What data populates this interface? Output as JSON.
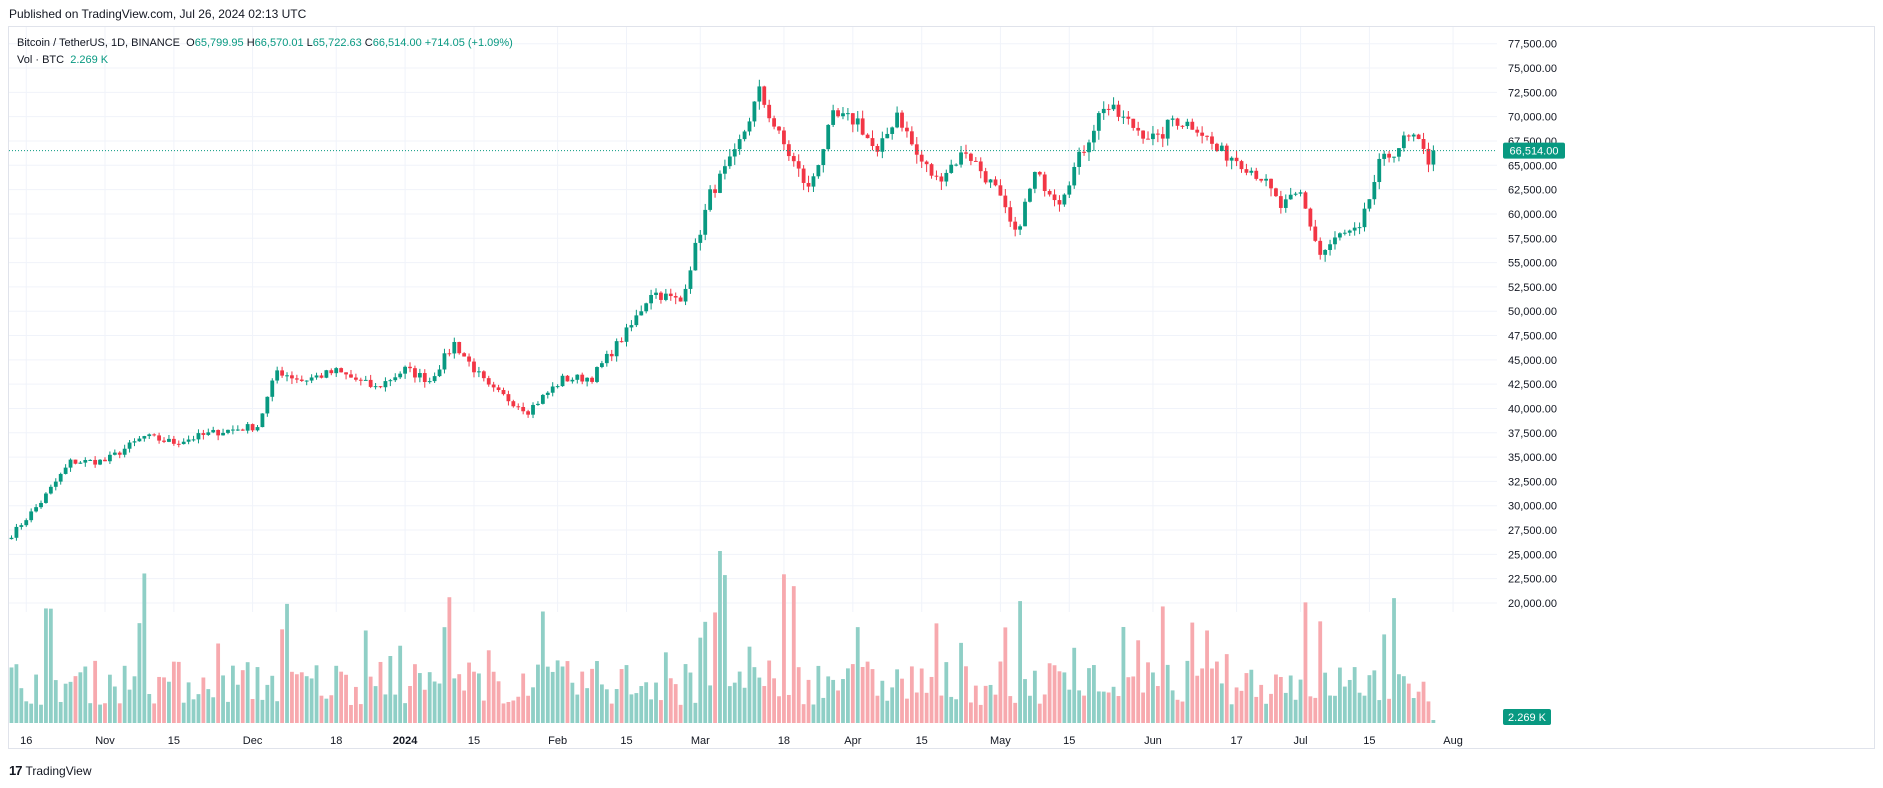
{
  "header": {
    "published": "Published on TradingView.com, Jul 26, 2024 02:13 UTC"
  },
  "legend": {
    "symbol": "Bitcoin / TetherUS, 1D, BINANCE",
    "o_label": "O",
    "o_value": "65,799.95",
    "h_label": "H",
    "h_value": "66,570.01",
    "l_label": "L",
    "l_value": "65,722.63",
    "c_label": "C",
    "c_value": "66,514.00",
    "change": "+714.05 (+1.09%)",
    "vol_label": "Vol · BTC",
    "vol_value": "2.269 K"
  },
  "footer": {
    "brand": "TradingView",
    "logo": "17"
  },
  "colors": {
    "up": "#089981",
    "down": "#f23645",
    "vol_up": "#8fcfc6",
    "vol_down": "#f7a9ae",
    "grid": "#f0f3fa",
    "axis_text": "#131722"
  },
  "chart_data": {
    "type": "candlestick",
    "title": "Bitcoin / TetherUS, 1D, BINANCE",
    "last_price": 66514.0,
    "last_price_label": "66,514.00",
    "last_volume_label": "2.269 K",
    "ylim": [
      20000,
      78500
    ],
    "y_ticks": [
      20000,
      22500,
      25000,
      27500,
      30000,
      32500,
      35000,
      37500,
      40000,
      42500,
      45000,
      47500,
      50000,
      52500,
      55000,
      57500,
      60000,
      62500,
      65000,
      67500,
      70000,
      72500,
      75000,
      77500
    ],
    "y_tick_labels": [
      "20,000.00",
      "22,500.00",
      "25,000.00",
      "27,500.00",
      "30,000.00",
      "32,500.00",
      "35,000.00",
      "37,500.00",
      "40,000.00",
      "42,500.00",
      "45,000.00",
      "47,500.00",
      "50,000.00",
      "52,500.00",
      "55,000.00",
      "57,500.00",
      "60,000.00",
      "62,500.00",
      "65,000.00",
      "67,500.00",
      "70,000.00",
      "72,500.00",
      "75,000.00",
      "77,500.00"
    ],
    "x_tick_labels": [
      {
        "label": "16",
        "index": 3
      },
      {
        "label": "Nov",
        "index": 19
      },
      {
        "label": "15",
        "index": 33
      },
      {
        "label": "Dec",
        "index": 49
      },
      {
        "label": "18",
        "index": 66
      },
      {
        "label": "2024",
        "index": 80,
        "bold": true
      },
      {
        "label": "15",
        "index": 94
      },
      {
        "label": "Feb",
        "index": 111
      },
      {
        "label": "15",
        "index": 125
      },
      {
        "label": "Mar",
        "index": 140
      },
      {
        "label": "18",
        "index": 157
      },
      {
        "label": "Apr",
        "index": 171
      },
      {
        "label": "15",
        "index": 185
      },
      {
        "label": "May",
        "index": 201
      },
      {
        "label": "15",
        "index": 215
      },
      {
        "label": "Jun",
        "index": 232
      },
      {
        "label": "17",
        "index": 249
      },
      {
        "label": "Jul",
        "index": 262
      },
      {
        "label": "15",
        "index": 276
      },
      {
        "label": "Aug",
        "index": 293
      }
    ],
    "close_anchors": [
      [
        0,
        27000
      ],
      [
        6,
        30400
      ],
      [
        12,
        34500
      ],
      [
        19,
        34600
      ],
      [
        27,
        37100
      ],
      [
        33,
        36500
      ],
      [
        42,
        37600
      ],
      [
        50,
        38200
      ],
      [
        54,
        43900
      ],
      [
        59,
        42900
      ],
      [
        66,
        43800
      ],
      [
        74,
        42100
      ],
      [
        80,
        44000
      ],
      [
        85,
        42900
      ],
      [
        90,
        46700
      ],
      [
        97,
        42100
      ],
      [
        105,
        39800
      ],
      [
        112,
        43000
      ],
      [
        118,
        43200
      ],
      [
        126,
        48500
      ],
      [
        130,
        52000
      ],
      [
        136,
        51000
      ],
      [
        139,
        56500
      ],
      [
        142,
        62000
      ],
      [
        147,
        66000
      ],
      [
        152,
        72500
      ],
      [
        156,
        68000
      ],
      [
        162,
        62500
      ],
      [
        167,
        69900
      ],
      [
        172,
        69600
      ],
      [
        176,
        66000
      ],
      [
        180,
        70500
      ],
      [
        184,
        66000
      ],
      [
        188,
        63500
      ],
      [
        194,
        66500
      ],
      [
        200,
        62500
      ],
      [
        204,
        57800
      ],
      [
        208,
        64000
      ],
      [
        213,
        61500
      ],
      [
        218,
        66800
      ],
      [
        222,
        71200
      ],
      [
        228,
        69000
      ],
      [
        233,
        67500
      ],
      [
        236,
        69800
      ],
      [
        241,
        69000
      ],
      [
        245,
        66500
      ],
      [
        249,
        65700
      ],
      [
        254,
        63800
      ],
      [
        258,
        60700
      ],
      [
        262,
        62000
      ],
      [
        266,
        55800
      ],
      [
        270,
        57800
      ],
      [
        274,
        58200
      ],
      [
        278,
        65000
      ],
      [
        283,
        67500
      ],
      [
        285,
        67800
      ],
      [
        288,
        65500
      ],
      [
        289,
        66514
      ]
    ],
    "candle_count": 290,
    "volume_ylim": [
      0,
      260000
    ],
    "volume_range_btc": "approx. 2.27K - 80K per day"
  }
}
